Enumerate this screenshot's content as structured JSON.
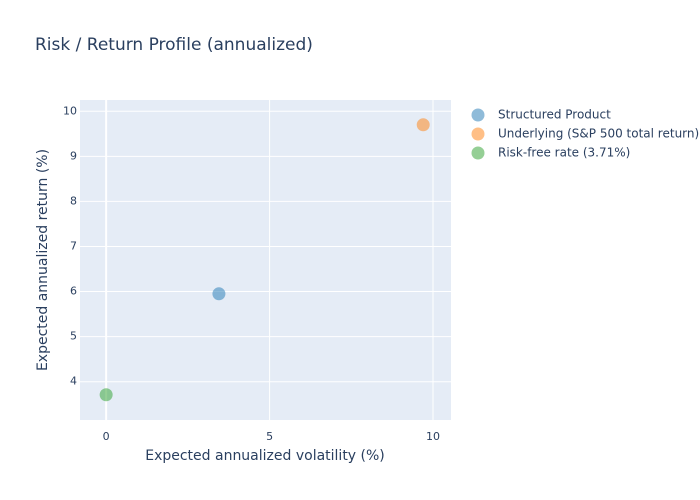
{
  "chart_data": {
    "type": "scatter",
    "title": "Risk / Return Profile (annualized)",
    "xlabel": "Expected annualized volatility (%)",
    "ylabel": "Expected annualized return (%)",
    "xlim": [
      -0.8,
      10.55
    ],
    "ylim": [
      3.15,
      10.25
    ],
    "xticks": [
      0,
      5,
      10
    ],
    "yticks": [
      4,
      5,
      6,
      7,
      8,
      9,
      10
    ],
    "grid": true,
    "legend_position": "right",
    "plot_background": "#e5ecf6",
    "series": [
      {
        "name": "Structured Product",
        "color": "#1f77b4",
        "x": [
          3.45
        ],
        "y": [
          5.95
        ]
      },
      {
        "name": "Underlying (S&P 500 total return)",
        "color": "#ff7f0e",
        "x": [
          9.7
        ],
        "y": [
          9.7
        ]
      },
      {
        "name": "Risk-free rate (3.71%)",
        "color": "#2ca02c",
        "x": [
          0
        ],
        "y": [
          3.71
        ]
      }
    ]
  }
}
